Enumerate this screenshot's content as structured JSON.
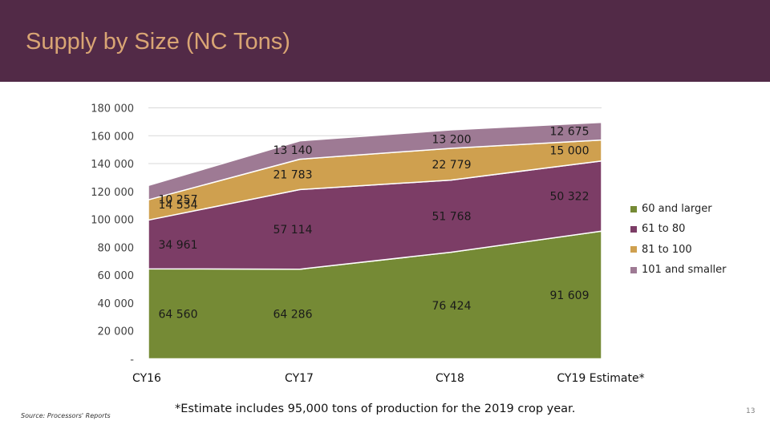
{
  "slide": {
    "title": "Supply by Size (NC Tons)",
    "footnote": "*Estimate includes 95,000 tons of production for the 2019 crop year.",
    "source": "Source: Processors' Reports",
    "page_number": "13"
  },
  "colors": {
    "header_bg": "#522a47",
    "title_text": "#d9a574"
  },
  "chart_data": {
    "type": "area",
    "stacked": true,
    "categories": [
      "CY16",
      "CY17",
      "CY18",
      "CY19 Estimate*"
    ],
    "y_ticks": [
      {
        "value": 0,
        "label": "-"
      },
      {
        "value": 20000,
        "label": "20 000"
      },
      {
        "value": 40000,
        "label": "40 000"
      },
      {
        "value": 60000,
        "label": "60 000"
      },
      {
        "value": 80000,
        "label": "80 000"
      },
      {
        "value": 100000,
        "label": "100 000"
      },
      {
        "value": 120000,
        "label": "120 000"
      },
      {
        "value": 140000,
        "label": "140 000"
      },
      {
        "value": 160000,
        "label": "160 000"
      },
      {
        "value": 180000,
        "label": "180 000"
      }
    ],
    "ylim": [
      0,
      180000
    ],
    "gridlines": true,
    "legend_position": "right",
    "series": [
      {
        "name": "60 and larger",
        "color": "#758a35",
        "values": [
          64560,
          64286,
          76424,
          91609
        ],
        "labels": [
          "64 560",
          "64 286",
          "76 424",
          "91 609"
        ]
      },
      {
        "name": "61 to 80",
        "color": "#7c3d66",
        "values": [
          34961,
          57114,
          51768,
          50322
        ],
        "labels": [
          "34 961",
          "57 114",
          "51 768",
          "50 322"
        ]
      },
      {
        "name": "81 to 100",
        "color": "#cfa04f",
        "values": [
          14534,
          21783,
          22779,
          15000
        ],
        "labels": [
          "14 534",
          "21 783",
          "22 779",
          "15 000"
        ]
      },
      {
        "name": "101 and smaller",
        "color": "#9e7a94",
        "values": [
          10257,
          13140,
          13200,
          12675
        ],
        "labels": [
          "10 257",
          "13 140",
          "13 200",
          "12 675"
        ]
      }
    ]
  }
}
